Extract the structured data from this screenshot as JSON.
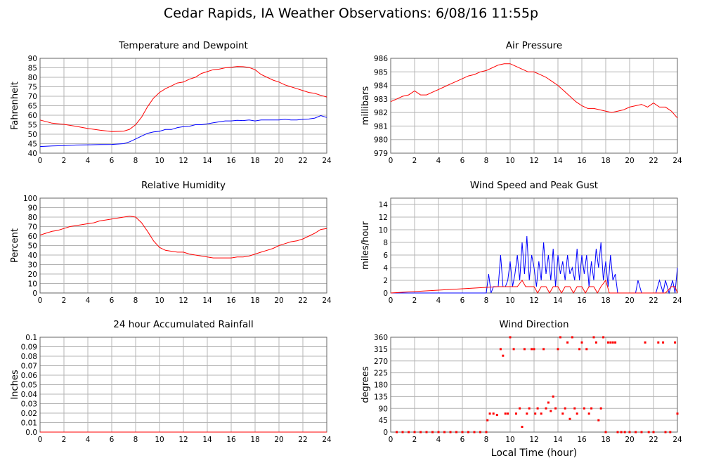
{
  "page": {
    "title": "Cedar Rapids, IA Weather Observations: 6/08/16 11:55p"
  },
  "colors": {
    "red": "#ff0000",
    "blue": "#0000ff",
    "grid": "#b4b4b4",
    "frame": "#666666"
  },
  "chart_data": [
    {
      "id": "temperature",
      "type": "line",
      "title": "Temperature and Dewpoint",
      "ylabel": "Fahrenheit",
      "xlabel": "",
      "xlim": [
        0,
        24
      ],
      "ylim": [
        40,
        90
      ],
      "x_ticks": [
        0,
        2,
        4,
        6,
        8,
        10,
        12,
        14,
        16,
        18,
        20,
        22,
        24
      ],
      "y_ticks": [
        40,
        45,
        50,
        55,
        60,
        65,
        70,
        75,
        80,
        85,
        90
      ],
      "grid": true,
      "series": [
        {
          "color": "#ff0000",
          "x": [
            0,
            1,
            2,
            3,
            4,
            5,
            6,
            7,
            7.5,
            8,
            8.5,
            9,
            9.5,
            10,
            10.5,
            11,
            11.5,
            12,
            12.5,
            13,
            13.5,
            14,
            14.5,
            15,
            15.5,
            16,
            16.5,
            17,
            17.5,
            18,
            18.5,
            19,
            19.5,
            20,
            20.5,
            21,
            21.5,
            22,
            22.5,
            23,
            23.5,
            24
          ],
          "y": [
            57.5,
            55.8,
            55.2,
            54.2,
            53,
            52.1,
            51.4,
            51.6,
            52.6,
            55,
            59,
            64.5,
            69,
            72,
            74,
            75.5,
            77,
            77.5,
            79,
            80,
            82,
            83,
            84,
            84.3,
            85,
            85.3,
            85.7,
            85.6,
            85.2,
            84,
            81.5,
            80,
            78.5,
            77.5,
            76,
            75,
            74,
            73,
            72,
            71.5,
            70.5,
            69.6
          ]
        },
        {
          "color": "#0000ff",
          "x": [
            0,
            1,
            2,
            3,
            4,
            5,
            6,
            7,
            7.5,
            8,
            8.5,
            9,
            9.5,
            10,
            10.5,
            11,
            11.5,
            12,
            12.5,
            13,
            13.5,
            14,
            14.5,
            15,
            15.5,
            16,
            16.5,
            17,
            17.5,
            18,
            18.5,
            19,
            19.5,
            20,
            20.5,
            21,
            21.5,
            22,
            22.5,
            23,
            23.5,
            24
          ],
          "y": [
            43.5,
            43.8,
            44,
            44.3,
            44.4,
            44.5,
            44.6,
            45,
            46,
            47.5,
            49,
            50.5,
            51.2,
            51.5,
            52.5,
            52.5,
            53.5,
            54,
            54.2,
            55,
            55,
            55.5,
            56,
            56.5,
            57,
            57,
            57.3,
            57.2,
            57.5,
            57,
            57.5,
            57.5,
            57.5,
            57.5,
            57.8,
            57.5,
            57.5,
            57.8,
            58,
            58.5,
            59.8,
            58.8
          ]
        }
      ]
    },
    {
      "id": "pressure",
      "type": "line",
      "title": "Air Pressure",
      "ylabel": "millibars",
      "xlabel": "",
      "xlim": [
        0,
        24
      ],
      "ylim": [
        979,
        986
      ],
      "x_ticks": [
        0,
        2,
        4,
        6,
        8,
        10,
        12,
        14,
        16,
        18,
        20,
        22,
        24
      ],
      "y_ticks": [
        979,
        980,
        981,
        982,
        983,
        984,
        985,
        986
      ],
      "grid": true,
      "series": [
        {
          "color": "#ff0000",
          "x": [
            0,
            0.5,
            1,
            1.5,
            2,
            2.5,
            3,
            3.5,
            4,
            4.5,
            5,
            5.5,
            6,
            6.5,
            7,
            7.5,
            8,
            8.5,
            9,
            9.5,
            10,
            10.5,
            11,
            11.5,
            12,
            12.5,
            13,
            13.5,
            14,
            14.5,
            15,
            15.5,
            16,
            16.5,
            17,
            17.5,
            18,
            18.5,
            19,
            19.5,
            20,
            20.5,
            21,
            21.5,
            22,
            22.5,
            23,
            23.5,
            24
          ],
          "y": [
            982.8,
            983,
            983.2,
            983.3,
            983.6,
            983.3,
            983.3,
            983.5,
            983.7,
            983.9,
            984.1,
            984.3,
            984.5,
            984.7,
            984.8,
            985,
            985.1,
            985.3,
            985.5,
            985.6,
            985.6,
            985.4,
            985.2,
            985,
            985,
            984.8,
            984.6,
            984.3,
            984,
            983.6,
            983.2,
            982.8,
            982.5,
            982.3,
            982.3,
            982.2,
            982.1,
            982,
            982.1,
            982.2,
            982.4,
            982.5,
            982.6,
            982.4,
            982.7,
            982.4,
            982.4,
            982.1,
            981.6
          ]
        }
      ]
    },
    {
      "id": "humidity",
      "type": "line",
      "title": "Relative Humidity",
      "ylabel": "Percent",
      "xlabel": "",
      "xlim": [
        0,
        24
      ],
      "ylim": [
        0,
        100
      ],
      "x_ticks": [
        0,
        2,
        4,
        6,
        8,
        10,
        12,
        14,
        16,
        18,
        20,
        22,
        24
      ],
      "y_ticks": [
        0,
        10,
        20,
        30,
        40,
        50,
        60,
        70,
        80,
        90,
        100
      ],
      "grid": true,
      "series": [
        {
          "color": "#ff0000",
          "x": [
            0,
            0.5,
            1,
            1.5,
            2,
            2.5,
            3,
            3.5,
            4,
            4.5,
            5,
            5.5,
            6,
            6.5,
            7,
            7.5,
            8,
            8.5,
            9,
            9.5,
            10,
            10.5,
            11,
            11.5,
            12,
            12.5,
            13,
            13.5,
            14,
            14.5,
            15,
            15.5,
            16,
            16.5,
            17,
            17.5,
            18,
            18.5,
            19,
            19.5,
            20,
            20.5,
            21,
            21.5,
            22,
            22.5,
            23,
            23.5,
            24
          ],
          "y": [
            61,
            63,
            65,
            66,
            68,
            70,
            71,
            72,
            73,
            74,
            76,
            77,
            78,
            79,
            80,
            81,
            80,
            74,
            65,
            55,
            48,
            45,
            44,
            43,
            43,
            41,
            40,
            39,
            38,
            37,
            37,
            37,
            37,
            38,
            38,
            39,
            41,
            43,
            45,
            47,
            50,
            52,
            54,
            55,
            57,
            60,
            63,
            67,
            68
          ]
        }
      ]
    },
    {
      "id": "wind-speed",
      "type": "line",
      "title": "Wind Speed and Peak Gust",
      "ylabel": "miles/hour",
      "xlabel": "",
      "xlim": [
        0,
        24
      ],
      "ylim": [
        0,
        15
      ],
      "x_ticks": [
        0,
        2,
        4,
        6,
        8,
        10,
        12,
        14,
        16,
        18,
        20,
        22,
        24
      ],
      "y_ticks": [
        0,
        2,
        4,
        6,
        8,
        10,
        12,
        14
      ],
      "grid": true,
      "series": [
        {
          "color": "#0000ff",
          "x": [
            0,
            8,
            8.2,
            8.4,
            8.6,
            9,
            9.2,
            9.4,
            9.6,
            9.8,
            10,
            10.2,
            10.4,
            10.6,
            10.8,
            11,
            11.2,
            11.4,
            11.6,
            11.8,
            12,
            12.2,
            12.4,
            12.6,
            12.8,
            13,
            13.2,
            13.4,
            13.6,
            13.8,
            14,
            14.2,
            14.4,
            14.6,
            14.8,
            15,
            15.2,
            15.4,
            15.6,
            15.8,
            16,
            16.2,
            16.4,
            16.6,
            16.8,
            17,
            17.2,
            17.4,
            17.6,
            17.8,
            18,
            18.2,
            18.4,
            18.6,
            18.8,
            19,
            19.5,
            20,
            20.5,
            20.7,
            21,
            21.5,
            22,
            22.2,
            22.5,
            22.8,
            23,
            23.3,
            23.6,
            23.8,
            24
          ],
          "y": [
            0,
            0,
            3,
            0,
            1,
            1,
            6,
            1,
            1,
            2,
            5,
            1,
            3,
            6,
            2,
            8,
            3,
            9,
            2,
            6,
            4,
            1,
            5,
            2,
            8,
            3,
            6,
            2,
            7,
            1,
            6,
            3,
            5,
            2,
            6,
            3,
            4,
            2,
            7,
            2,
            6,
            3,
            6,
            1,
            5,
            2,
            7,
            4,
            8,
            2,
            5,
            1,
            6,
            2,
            3,
            0,
            0,
            0,
            0,
            2,
            0,
            0,
            0,
            0,
            2,
            0,
            2,
            0,
            2,
            0,
            4
          ]
        },
        {
          "color": "#ff0000",
          "x": [
            0,
            9,
            9.3,
            9.6,
            10,
            10.3,
            10.6,
            11,
            11.3,
            11.6,
            12,
            12.3,
            12.6,
            13,
            13.3,
            13.6,
            14,
            14.3,
            14.6,
            15,
            15.3,
            15.6,
            16,
            16.3,
            16.6,
            17,
            17.3,
            17.6,
            18,
            18.3,
            19,
            20,
            21,
            22,
            23,
            23.5,
            23.8,
            24
          ],
          "y": [
            0,
            1,
            1,
            1,
            1,
            1,
            1,
            2,
            1,
            1,
            1,
            0,
            1,
            1,
            0,
            1,
            1,
            0,
            1,
            1,
            0,
            1,
            1,
            0,
            1,
            1,
            0,
            1,
            2,
            0,
            0,
            0,
            0,
            0,
            0,
            1,
            1,
            0
          ]
        }
      ]
    },
    {
      "id": "rainfall",
      "type": "line",
      "title": "24 hour Accumulated Rainfall",
      "ylabel": "Inches",
      "xlabel": "",
      "xlim": [
        0,
        24
      ],
      "ylim": [
        0,
        0.1
      ],
      "x_ticks": [
        0,
        2,
        4,
        6,
        8,
        10,
        12,
        14,
        16,
        18,
        20,
        22,
        24
      ],
      "y_ticks": [
        0.0,
        0.01,
        0.02,
        0.03,
        0.04,
        0.05,
        0.06,
        0.07,
        0.08,
        0.09,
        0.1
      ],
      "y_tick_labels": [
        "0.0",
        "0.01",
        "0.02",
        "0.03",
        "0.04",
        "0.05",
        "0.06",
        "0.07",
        "0.08",
        "0.09",
        "0.1"
      ],
      "grid": true,
      "series": [
        {
          "color": "#ff0000",
          "x": [
            0,
            24
          ],
          "y": [
            0,
            0
          ]
        }
      ]
    },
    {
      "id": "wind-direction",
      "type": "scatter",
      "title": "Wind Direction",
      "ylabel": "degrees",
      "xlabel": "Local Time (hour)",
      "xlim": [
        0,
        24
      ],
      "ylim": [
        0,
        360
      ],
      "x_ticks": [
        0,
        2,
        4,
        6,
        8,
        10,
        12,
        14,
        16,
        18,
        20,
        22,
        24
      ],
      "y_ticks": [
        0,
        45,
        90,
        135,
        180,
        225,
        270,
        315,
        360
      ],
      "grid": true,
      "series": [
        {
          "color": "#ff0000",
          "x": [
            0.5,
            1.0,
            1.5,
            2.0,
            2.5,
            3.0,
            3.5,
            4.0,
            4.5,
            5.0,
            5.5,
            6.0,
            6.5,
            7.0,
            7.5,
            8.0,
            8.1,
            8.3,
            8.6,
            8.9,
            9.2,
            9.4,
            9.6,
            9.8,
            10.0,
            10.3,
            10.5,
            10.8,
            11.0,
            11.2,
            11.4,
            11.6,
            11.8,
            12.0,
            12.1,
            12.3,
            12.6,
            12.8,
            13.0,
            13.2,
            13.4,
            13.6,
            13.8,
            14.0,
            14.2,
            14.4,
            14.6,
            14.8,
            15.0,
            15.2,
            15.4,
            15.6,
            15.8,
            16.0,
            16.2,
            16.4,
            16.6,
            16.8,
            17.0,
            17.2,
            17.4,
            17.6,
            17.8,
            18.0,
            18.2,
            18.4,
            18.6,
            18.8,
            19.0,
            19.3,
            19.6,
            20.0,
            20.5,
            21.0,
            21.3,
            21.6,
            22.0,
            22.4,
            22.8,
            23.0,
            23.4,
            23.8,
            24.0
          ],
          "y": [
            0,
            0,
            0,
            0,
            0,
            0,
            0,
            0,
            0,
            0,
            0,
            0,
            0,
            0,
            0,
            0,
            45,
            70,
            70,
            65,
            315,
            290,
            70,
            70,
            360,
            315,
            70,
            90,
            20,
            315,
            70,
            90,
            315,
            315,
            70,
            90,
            70,
            315,
            90,
            112,
            80,
            135,
            90,
            315,
            360,
            70,
            90,
            340,
            50,
            360,
            90,
            70,
            315,
            340,
            90,
            315,
            70,
            90,
            360,
            340,
            45,
            90,
            360,
            0,
            340,
            340,
            340,
            340,
            0,
            0,
            0,
            0,
            0,
            0,
            340,
            0,
            0,
            340,
            340,
            0,
            0,
            340,
            70
          ]
        }
      ]
    }
  ]
}
